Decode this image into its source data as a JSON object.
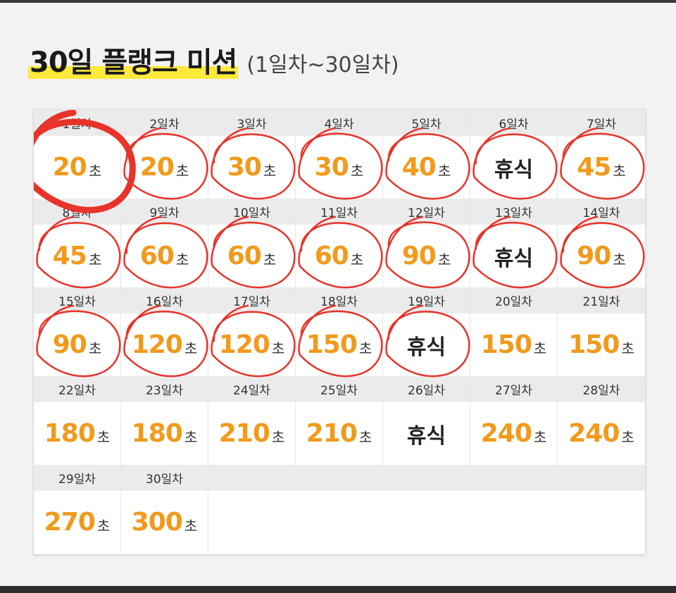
{
  "title": {
    "main": "30일 플랭크 미션",
    "sub": "(1일차~30일차)"
  },
  "rest_label": "휴식",
  "unit": "초",
  "days": [
    {
      "label": "1일차",
      "value": "20"
    },
    {
      "label": "2일차",
      "value": "20"
    },
    {
      "label": "3일차",
      "value": "30"
    },
    {
      "label": "4일차",
      "value": "30"
    },
    {
      "label": "5일차",
      "value": "40"
    },
    {
      "label": "6일차",
      "value": "휴식"
    },
    {
      "label": "7일차",
      "value": "45"
    },
    {
      "label": "8일차",
      "value": "45"
    },
    {
      "label": "9일차",
      "value": "60"
    },
    {
      "label": "10일차",
      "value": "60"
    },
    {
      "label": "11일차",
      "value": "60"
    },
    {
      "label": "12일차",
      "value": "90"
    },
    {
      "label": "13일차",
      "value": "휴식"
    },
    {
      "label": "14일차",
      "value": "90"
    },
    {
      "label": "15일차",
      "value": "90"
    },
    {
      "label": "16일차",
      "value": "120"
    },
    {
      "label": "17일차",
      "value": "120"
    },
    {
      "label": "18일차",
      "value": "150"
    },
    {
      "label": "19일차",
      "value": "휴식"
    },
    {
      "label": "20일차",
      "value": "150"
    },
    {
      "label": "21일차",
      "value": "150"
    },
    {
      "label": "22일차",
      "value": "180"
    },
    {
      "label": "23일차",
      "value": "180"
    },
    {
      "label": "24일차",
      "value": "210"
    },
    {
      "label": "25일차",
      "value": "210"
    },
    {
      "label": "26일차",
      "value": "휴식"
    },
    {
      "label": "27일차",
      "value": "240"
    },
    {
      "label": "28일차",
      "value": "240"
    },
    {
      "label": "29일차",
      "value": "270"
    },
    {
      "label": "30일차",
      "value": "300"
    }
  ],
  "circled_days": [
    1,
    2,
    3,
    4,
    5,
    6,
    7,
    8,
    9,
    10,
    11,
    12,
    13,
    14,
    15,
    16,
    17,
    18,
    19
  ],
  "colors": {
    "accent": "#f19a1b",
    "highlight": "#ffe93b",
    "marker": "#e8332a"
  }
}
